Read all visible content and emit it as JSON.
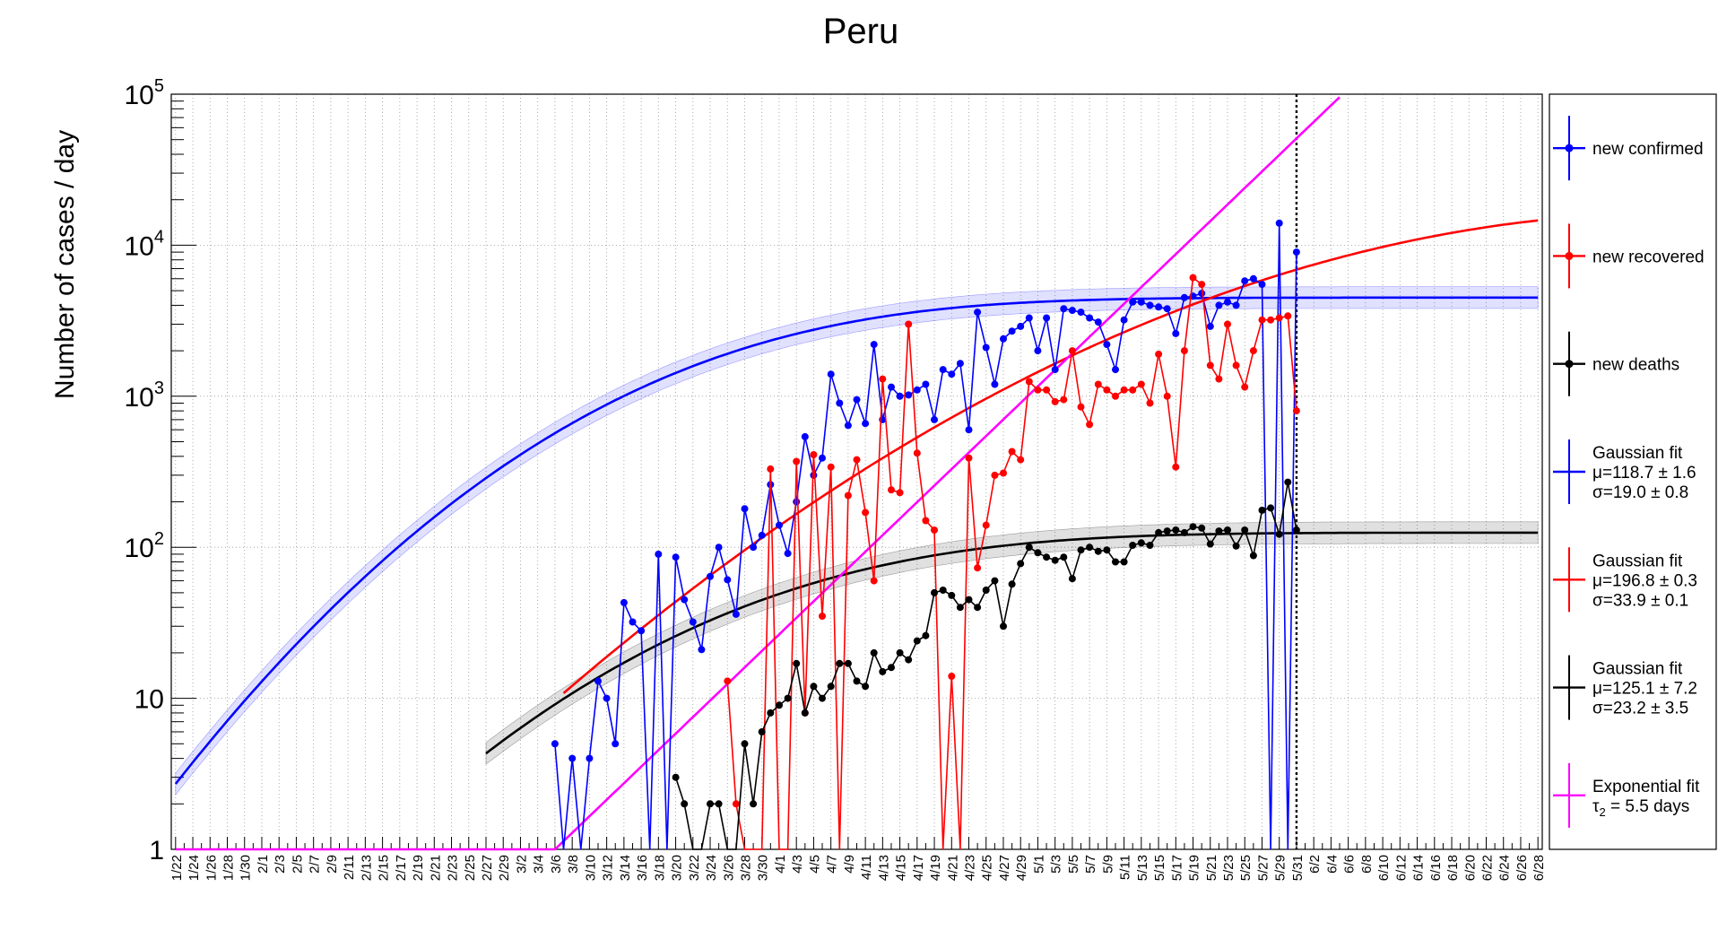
{
  "chart_data": {
    "type": "line",
    "title": "Peru",
    "xlabel": "",
    "ylabel": "Number of cases / day",
    "y_scale": "log",
    "ylim": [
      1,
      100000
    ],
    "y_tick_labels": [
      "1",
      "10",
      "10^2",
      "10^3",
      "10^4",
      "10^5"
    ],
    "x_tick_labels": [
      "1/22",
      "1/24",
      "1/26",
      "1/28",
      "1/30",
      "2/1",
      "2/3",
      "2/5",
      "2/7",
      "2/9",
      "2/11",
      "2/13",
      "2/15",
      "2/17",
      "2/19",
      "2/21",
      "2/23",
      "2/25",
      "2/27",
      "2/29",
      "3/2",
      "3/4",
      "3/6",
      "3/8",
      "3/10",
      "3/12",
      "3/14",
      "3/16",
      "3/18",
      "3/20",
      "3/22",
      "3/24",
      "3/26",
      "3/28",
      "3/30",
      "4/1",
      "4/3",
      "4/5",
      "4/7",
      "4/9",
      "4/11",
      "4/13",
      "4/15",
      "4/17",
      "4/19",
      "4/21",
      "4/23",
      "4/25",
      "4/27",
      "4/29",
      "5/1",
      "5/3",
      "5/5",
      "5/7",
      "5/9",
      "5/11",
      "5/13",
      "5/15",
      "5/17",
      "5/19",
      "5/21",
      "5/23",
      "5/25",
      "5/27",
      "5/29",
      "5/31",
      "6/2",
      "6/4",
      "6/6",
      "6/8",
      "6/10",
      "6/12",
      "6/14",
      "6/16",
      "6/18",
      "6/20",
      "6/22",
      "6/24",
      "6/26",
      "6/28"
    ],
    "marker_date": "5/31",
    "grid": true,
    "legend_position": "right",
    "colors": {
      "confirmed": "#0000ff",
      "recovered": "#ff0000",
      "deaths": "#000000",
      "exponential": "#ff00ff"
    },
    "legend": [
      {
        "key": "confirmed",
        "lines": [
          "new confirmed"
        ]
      },
      {
        "key": "recovered",
        "lines": [
          "new recovered"
        ]
      },
      {
        "key": "deaths",
        "lines": [
          "new deaths"
        ]
      },
      {
        "key": "fit_confirmed",
        "lines": [
          "Gaussian fit",
          "μ=118.7 ± 1.6",
          "σ=19.0 ± 0.8"
        ]
      },
      {
        "key": "fit_recovered",
        "lines": [
          "Gaussian fit",
          "μ=196.8 ± 0.3",
          "σ=33.9 ± 0.1"
        ]
      },
      {
        "key": "fit_deaths",
        "lines": [
          "Gaussian fit",
          "μ=125.1 ± 7.2",
          "σ=23.2 ± 3.5"
        ]
      },
      {
        "key": "exponential",
        "lines": [
          "Exponential fit",
          "τ2 = 5.5 days"
        ]
      }
    ],
    "series": [
      {
        "name": "new confirmed",
        "x": [
          "3/6",
          "3/7",
          "3/8",
          "3/9",
          "3/10",
          "3/11",
          "3/12",
          "3/13",
          "3/14",
          "3/15",
          "3/16",
          "3/17",
          "3/18",
          "3/19",
          "3/20",
          "3/21",
          "3/22",
          "3/23",
          "3/24",
          "3/25",
          "3/26",
          "3/27",
          "3/28",
          "3/29",
          "3/30",
          "3/31",
          "4/1",
          "4/2",
          "4/3",
          "4/4",
          "4/5",
          "4/6",
          "4/7",
          "4/8",
          "4/9",
          "4/10",
          "4/11",
          "4/12",
          "4/13",
          "4/14",
          "4/15",
          "4/16",
          "4/17",
          "4/18",
          "4/19",
          "4/20",
          "4/21",
          "4/22",
          "4/23",
          "4/24",
          "4/25",
          "4/26",
          "4/27",
          "4/28",
          "4/29",
          "4/30",
          "5/1",
          "5/2",
          "5/3",
          "5/4",
          "5/5",
          "5/6",
          "5/7",
          "5/8",
          "5/9",
          "5/10",
          "5/11",
          "5/12",
          "5/13",
          "5/14",
          "5/15",
          "5/16",
          "5/17",
          "5/18",
          "5/19",
          "5/20",
          "5/21",
          "5/22",
          "5/23",
          "5/24",
          "5/25",
          "5/26",
          "5/27",
          "5/28",
          "5/29",
          "5/30",
          "5/31"
        ],
        "y": [
          5,
          1,
          4,
          1,
          4,
          13,
          10,
          5,
          43,
          32,
          28,
          1,
          90,
          1,
          86,
          45,
          32,
          21,
          64,
          100,
          61,
          36,
          180,
          100,
          120,
          260,
          140,
          91,
          200,
          540,
          300,
          390,
          1400,
          900,
          640,
          950,
          660,
          2200,
          700,
          1150,
          1000,
          1020,
          1100,
          1200,
          700,
          1500,
          1400,
          1650,
          600,
          3600,
          2100,
          1200,
          2400,
          2700,
          2900,
          3300,
          2000,
          3300,
          1500,
          3800,
          3700,
          3600,
          3300,
          3100,
          2200,
          1500,
          3200,
          4200,
          4200,
          4000,
          3900,
          3800,
          2600,
          4500,
          4600,
          4800,
          2900,
          4000,
          4200,
          4000,
          5800,
          6000,
          5500,
          1,
          14000,
          1,
          9000
        ]
      },
      {
        "name": "new recovered",
        "x": [
          "3/26",
          "3/27",
          "3/28",
          "3/29",
          "3/30",
          "3/31",
          "4/1",
          "4/2",
          "4/3",
          "4/4",
          "4/5",
          "4/6",
          "4/7",
          "4/8",
          "4/9",
          "4/10",
          "4/11",
          "4/12",
          "4/13",
          "4/14",
          "4/15",
          "4/16",
          "4/17",
          "4/18",
          "4/19",
          "4/20",
          "4/21",
          "4/22",
          "4/23",
          "4/24",
          "4/25",
          "4/26",
          "4/27",
          "4/28",
          "4/29",
          "4/30",
          "5/1",
          "5/2",
          "5/3",
          "5/4",
          "5/5",
          "5/6",
          "5/7",
          "5/8",
          "5/9",
          "5/10",
          "5/11",
          "5/12",
          "5/13",
          "5/14",
          "5/15",
          "5/16",
          "5/17",
          "5/18",
          "5/19",
          "5/20",
          "5/21",
          "5/22",
          "5/23",
          "5/24",
          "5/25",
          "5/26",
          "5/27",
          "5/28",
          "5/29",
          "5/30",
          "5/31"
        ],
        "y": [
          13,
          2,
          1,
          1,
          1,
          330,
          1,
          1,
          370,
          8,
          410,
          35,
          340,
          1,
          220,
          380,
          170,
          60,
          1300,
          240,
          230,
          3000,
          420,
          150,
          130,
          1,
          14,
          1,
          390,
          73,
          140,
          300,
          310,
          430,
          380,
          1250,
          1100,
          1100,
          920,
          950,
          2000,
          850,
          650,
          1200,
          1100,
          1000,
          1100,
          1100,
          1200,
          900,
          1900,
          1000,
          340,
          2000,
          6100,
          5500,
          1600,
          1300,
          3000,
          1600,
          1150,
          2000,
          3200,
          3200,
          3300,
          3400,
          800
        ]
      },
      {
        "name": "new deaths",
        "x": [
          "3/20",
          "3/21",
          "3/22",
          "3/23",
          "3/24",
          "3/25",
          "3/26",
          "3/27",
          "3/28",
          "3/29",
          "3/30",
          "3/31",
          "4/1",
          "4/2",
          "4/3",
          "4/4",
          "4/5",
          "4/6",
          "4/7",
          "4/8",
          "4/9",
          "4/10",
          "4/11",
          "4/12",
          "4/13",
          "4/14",
          "4/15",
          "4/16",
          "4/17",
          "4/18",
          "4/19",
          "4/20",
          "4/21",
          "4/22",
          "4/23",
          "4/24",
          "4/25",
          "4/26",
          "4/27",
          "4/28",
          "4/29",
          "4/30",
          "5/1",
          "5/2",
          "5/3",
          "5/4",
          "5/5",
          "5/6",
          "5/7",
          "5/8",
          "5/9",
          "5/10",
          "5/11",
          "5/12",
          "5/13",
          "5/14",
          "5/15",
          "5/16",
          "5/17",
          "5/18",
          "5/19",
          "5/20",
          "5/21",
          "5/22",
          "5/23",
          "5/24",
          "5/25",
          "5/26",
          "5/27",
          "5/28",
          "5/29",
          "5/30",
          "5/31"
        ],
        "y": [
          3,
          2,
          1,
          1,
          2,
          2,
          1,
          1,
          5,
          2,
          6,
          8,
          9,
          10,
          17,
          8,
          12,
          10,
          12,
          17,
          17,
          13,
          12,
          20,
          15,
          16,
          20,
          18,
          24,
          26,
          50,
          52,
          48,
          40,
          45,
          40,
          52,
          60,
          30,
          57,
          78,
          100,
          92,
          86,
          82,
          86,
          62,
          96,
          100,
          94,
          96,
          80,
          80,
          103,
          107,
          103,
          125,
          128,
          130,
          125,
          137,
          134,
          105,
          128,
          130,
          102,
          130,
          88,
          176,
          182,
          122,
          270,
          130
        ]
      }
    ],
    "fits": {
      "confirmed": {
        "type": "gaussian",
        "mu": 118.7,
        "sigma": 19.0
      },
      "recovered": {
        "type": "gaussian",
        "mu": 196.8,
        "sigma": 33.9
      },
      "deaths": {
        "type": "gaussian",
        "mu": 125.1,
        "sigma": 23.2
      },
      "exponential": {
        "type": "exponential",
        "tau2_days": 5.5
      }
    }
  }
}
